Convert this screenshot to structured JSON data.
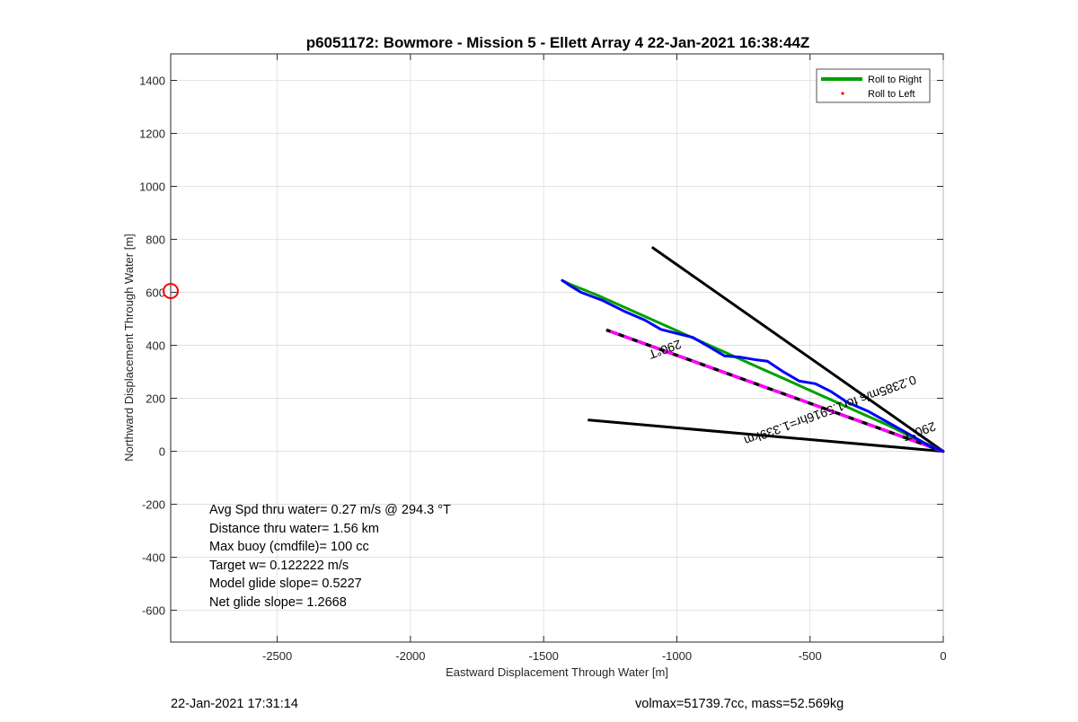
{
  "chart_data": {
    "type": "line",
    "title": "p6051172: Bowmore - Mission 5 - Ellett Array 4 22-Jan-2021 16:38:44Z",
    "xlabel": "Eastward Displacement Through Water [m]",
    "ylabel": "Northward Displacement Through Water [m]",
    "xlim": [
      -2900,
      0
    ],
    "ylim": [
      -720,
      1500
    ],
    "xticks": [
      -2500,
      -2000,
      -1500,
      -1000,
      -500,
      0
    ],
    "yticks": [
      1400,
      1200,
      1000,
      800,
      600,
      400,
      200,
      0,
      -200,
      -400,
      -600
    ],
    "grid": true,
    "legend_position": "top-right",
    "legend": [
      {
        "label": "Roll to Right",
        "color": "#00a000",
        "style": "line"
      },
      {
        "label": "Roll to Left",
        "color": "#ff0000",
        "style": "dot"
      }
    ],
    "series": [
      {
        "name": "Roll to Right",
        "color": "#00a000",
        "x": [
          0,
          -100,
          -200,
          -300,
          -400,
          -500,
          -600,
          -700,
          -800,
          -900,
          -1000,
          -1100,
          -1200,
          -1300,
          -1400,
          -1430
        ],
        "y": [
          0,
          45,
          95,
          140,
          185,
          230,
          275,
          320,
          365,
          410,
          455,
          500,
          545,
          590,
          630,
          645
        ]
      },
      {
        "color": "#0000ff",
        "x": [
          0,
          -60,
          -120,
          -200,
          -280,
          -360,
          -420,
          -480,
          -540,
          -600,
          -660,
          -700,
          -760,
          -820,
          -880,
          -940,
          -1000,
          -1060,
          -1120,
          -1200,
          -1280,
          -1360,
          -1400,
          -1430
        ],
        "y": [
          0,
          25,
          60,
          105,
          150,
          185,
          225,
          255,
          265,
          300,
          340,
          345,
          355,
          360,
          395,
          430,
          445,
          460,
          495,
          530,
          570,
          600,
          625,
          645
        ]
      },
      {
        "color": "#ff00ff",
        "style": "dashed",
        "x": [
          0,
          -1265
        ],
        "y": [
          0,
          458
        ]
      },
      {
        "color": "#000000",
        "x": [
          0,
          -1090
        ],
        "y": [
          0,
          768
        ]
      },
      {
        "color": "#000000",
        "x": [
          0,
          -1330
        ],
        "y": [
          0,
          118
        ]
      }
    ],
    "annotations": [
      {
        "text": "290°T",
        "x": -1050,
        "y": 400,
        "rotation": 160
      },
      {
        "text": "0.2385m/s for1.5916hr=1.339km",
        "x": -430,
        "y": 170,
        "rotation": 160
      },
      {
        "text": "290°T",
        "x": -95,
        "y": 90,
        "rotation": 160
      }
    ],
    "markers": [
      {
        "shape": "circle",
        "color": "#ff0000",
        "x": -2900,
        "y": 605
      }
    ]
  },
  "stats": {
    "line1": "Avg Spd thru water=  0.27 m/s @ 294.3 °T",
    "line2": "Distance thru water=  1.56 km",
    "line3": "Max buoy (cmdfile)= 100 cc",
    "line4": "Target w= 0.122222 m/s",
    "line5": "Model glide slope= 0.5227",
    "line6": "Net glide slope= 1.2668"
  },
  "footer": {
    "timestamp": "22-Jan-2021 17:31:14",
    "volmax": "volmax=51739.7cc, mass=52.569kg"
  }
}
